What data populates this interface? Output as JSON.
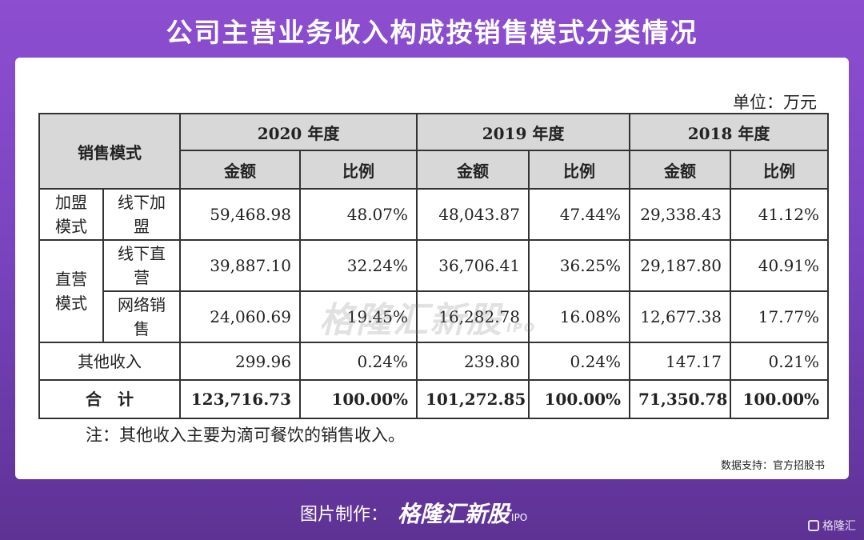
{
  "title": "公司主营业务收入构成按销售模式分类情况",
  "unit_label": "单位：万元",
  "table": {
    "mode_header": "销售模式",
    "years": [
      "2020 年度",
      "2019 年度",
      "2018 年度"
    ],
    "amount_header": "金额",
    "ratio_header": "比例",
    "group_franchise": "加盟模式",
    "group_direct": "直营模式",
    "rows": [
      {
        "sub": "线下加盟",
        "v2020": "59,468.98",
        "r2020": "48.07%",
        "v2019": "48,043.87",
        "r2019": "47.44%",
        "v2018": "29,338.43",
        "r2018": "41.12%"
      },
      {
        "sub": "线下直营",
        "v2020": "39,887.10",
        "r2020": "32.24%",
        "v2019": "36,706.41",
        "r2019": "36.25%",
        "v2018": "29,187.80",
        "r2018": "40.91%"
      },
      {
        "sub": "网络销售",
        "v2020": "24,060.69",
        "r2020": "19.45%",
        "v2019": "16,282.78",
        "r2019": "16.08%",
        "v2018": "12,677.38",
        "r2018": "17.77%"
      },
      {
        "sub": "其他收入",
        "v2020": "299.96",
        "r2020": "0.24%",
        "v2019": "239.80",
        "r2019": "0.24%",
        "v2018": "147.17",
        "r2018": "0.21%"
      }
    ],
    "total": {
      "label": "合　计",
      "v2020": "123,716.73",
      "r2020": "100.00%",
      "v2019": "101,272.85",
      "r2019": "100.00%",
      "v2018": "71,350.78",
      "r2018": "100.00%"
    }
  },
  "note": "注：其他收入主要为滴可餐饮的销售收入。",
  "source": "数据支持：官方招股书",
  "watermark": {
    "brand": "格隆汇新股",
    "tag": "IPO"
  },
  "footer": {
    "prefix": "图片制作：",
    "brand": "格隆汇新股",
    "tag": "IPO"
  },
  "corner_brand": "格隆汇"
}
